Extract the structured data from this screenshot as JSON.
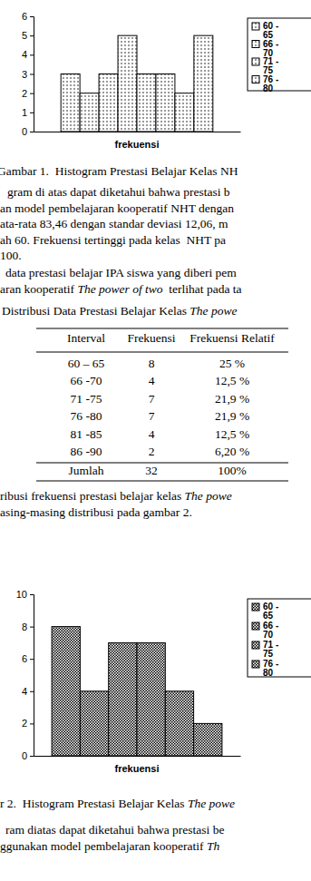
{
  "chart_data": [
    {
      "type": "bar",
      "categories": [
        "frekuensi"
      ],
      "series": [
        {
          "name": "60 - 65",
          "values": [
            3
          ]
        },
        {
          "name": "66 - 70",
          "values": [
            2
          ]
        },
        {
          "name": "71 - 75",
          "values": [
            3
          ]
        },
        {
          "name": "76 - 80",
          "values": [
            5
          ]
        },
        {
          "values": [
            3
          ]
        },
        {
          "values": [
            3
          ]
        },
        {
          "values": [
            2
          ]
        },
        {
          "values": [
            5
          ]
        }
      ],
      "ylim": [
        0,
        6
      ],
      "yticks": [
        0,
        1,
        2,
        3,
        4,
        5,
        6
      ],
      "color": "#000000",
      "legend": "right"
    },
    {
      "type": "bar",
      "categories": [
        "frekuensi"
      ],
      "series": [
        {
          "name": "60 - 65",
          "values": [
            8
          ]
        },
        {
          "name": "66 - 70",
          "values": [
            4
          ]
        },
        {
          "name": "71 - 75",
          "values": [
            7
          ]
        },
        {
          "name": "76 - 80",
          "values": [
            7
          ]
        },
        {
          "values": [
            4
          ]
        },
        {
          "values": [
            2
          ]
        }
      ],
      "ylim": [
        0,
        10
      ],
      "yticks": [
        0,
        2,
        4,
        6,
        8,
        10
      ],
      "color": "#000000",
      "legend": "right"
    }
  ],
  "document": {
    "caption_1": [
      [
        {
          "text": "Gambar 1.  Histogram Prestasi Belajar Kelas NH",
          "italic": false
        }
      ]
    ],
    "para_1": [
      [
        {
          "text": "gram di atas dapat diketahui bahwa prestasi b",
          "italic": false
        }
      ],
      [
        {
          "text": "an model pembelajaran kooperatif NHT dengan",
          "italic": false
        }
      ],
      [
        {
          "text": "ata-rata 83,46 dengan standar deviasi 12,06, m",
          "italic": false
        }
      ],
      [
        {
          "text": "ah 60. Frekuensi tertinggi pada kelas  NHT pa",
          "italic": false
        }
      ],
      [
        {
          "text": "100.",
          "italic": false
        }
      ]
    ],
    "para_2": [
      [
        {
          "text": "data prestasi belajar IPA siswa yang diberi pem",
          "italic": false
        }
      ],
      [
        {
          "text": "aran kooperatif ",
          "italic": false
        },
        {
          "text": "The power of two",
          "italic": true
        },
        {
          "text": "  terlihat pada ta",
          "italic": false
        }
      ]
    ],
    "table_title": [
      [
        {
          "text": "Distribusi Data Prestasi Belajar Kelas ",
          "italic": false
        },
        {
          "text": "The powe",
          "italic": true
        }
      ]
    ],
    "table": {
      "header": [
        "Interval",
        "Frekuensi",
        "Frekuensi Relatif"
      ],
      "rows": [
        [
          "60 – 65",
          "8",
          "25 %"
        ],
        [
          "66 -70",
          "4",
          "12,5 %"
        ],
        [
          "71 -75",
          "7",
          "21,9 %"
        ],
        [
          "76 -80",
          "7",
          "21,9 %"
        ],
        [
          "81 -85",
          "4",
          "12,5 %"
        ],
        [
          "86 -90",
          "2",
          "6,20 %"
        ],
        [
          "Jumlah",
          "32",
          "100%"
        ]
      ]
    },
    "para_3": [
      [
        {
          "text": "ribusi frekuensi prestasi belajar kelas ",
          "italic": false
        },
        {
          "text": "The powe",
          "italic": true
        }
      ],
      [
        {
          "text": "asing-masing distribusi pada gambar 2.",
          "italic": false
        }
      ]
    ],
    "caption_2": [
      [
        {
          "text": "r 2.  Histogram Prestasi Belajar Kelas ",
          "italic": false
        },
        {
          "text": "The powe",
          "italic": true
        }
      ]
    ],
    "para_4": [
      [
        {
          "text": "ram diatas dapat diketahui bahwa prestasi be",
          "italic": false
        }
      ],
      [
        {
          "text": "ggunakan model pembelajaran kooperatif ",
          "italic": false
        },
        {
          "text": "Th",
          "italic": true
        }
      ]
    ]
  }
}
